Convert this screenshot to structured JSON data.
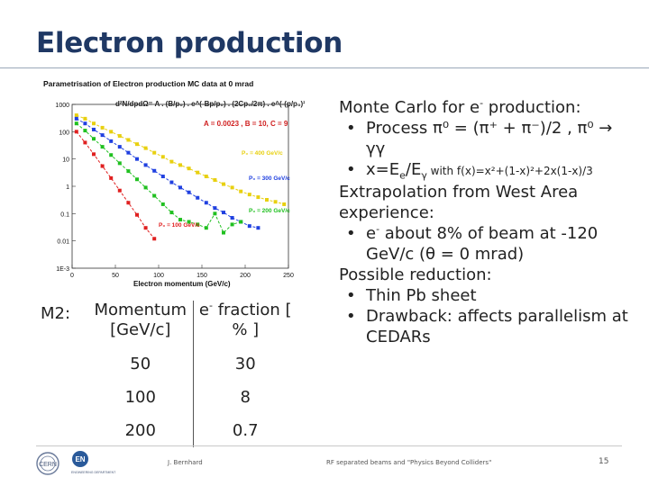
{
  "title": "Electron production",
  "chart_data": {
    "type": "scatter",
    "title": "Parametrisation of Electron production MC data at 0 mrad",
    "formula_main": "d²N/dpdΩ= A . (B/p₀) . e^(-Bp/p₀) . (2Cp₀/2π) . e^(-(p/p₀)²)",
    "formula_params": "A = 0.0023 , B = 10, C = 9",
    "xlabel": "Electron momentum (GeV/c)",
    "ylabel": "",
    "xlim": [
      0,
      250
    ],
    "ylim_log10": [
      -3,
      3
    ],
    "x_ticks": [
      "0",
      "50",
      "100",
      "150",
      "200",
      "250"
    ],
    "y_ticks": [
      "1000",
      "100",
      "10",
      "1",
      "0.1",
      "0.01",
      "1E-3"
    ],
    "series": [
      {
        "name": "P₀ = 400 GeV/c",
        "color": "#e8d010",
        "x": [
          5,
          15,
          25,
          35,
          45,
          55,
          65,
          75,
          85,
          95,
          105,
          115,
          125,
          135,
          145,
          155,
          165,
          175,
          185,
          195,
          205,
          215,
          225,
          235,
          245
        ],
        "y": [
          400,
          300,
          200,
          140,
          100,
          70,
          50,
          35,
          25,
          17,
          12,
          8,
          6,
          4.5,
          3.2,
          2.3,
          1.7,
          1.2,
          0.9,
          0.65,
          0.5,
          0.4,
          0.32,
          0.27,
          0.22
        ]
      },
      {
        "name": "P₀ = 300 GeV/c",
        "color": "#2040e0",
        "x": [
          5,
          15,
          25,
          35,
          45,
          55,
          65,
          75,
          85,
          95,
          105,
          115,
          125,
          135,
          145,
          155,
          165,
          175,
          185,
          195,
          205,
          215
        ],
        "y": [
          300,
          200,
          120,
          75,
          45,
          28,
          17,
          10,
          6,
          3.7,
          2.3,
          1.4,
          0.9,
          0.6,
          0.38,
          0.25,
          0.16,
          0.11,
          0.07,
          0.05,
          0.035,
          0.03
        ]
      },
      {
        "name": "P₀ = 200 GeV/c",
        "color": "#20c020",
        "x": [
          5,
          15,
          25,
          35,
          45,
          55,
          65,
          75,
          85,
          95,
          105,
          115,
          125,
          135,
          145,
          155,
          165,
          175,
          185,
          195
        ],
        "y": [
          200,
          110,
          55,
          28,
          14,
          7,
          3.6,
          1.8,
          0.9,
          0.45,
          0.22,
          0.11,
          0.06,
          0.05,
          0.04,
          0.03,
          0.1,
          0.02,
          0.04,
          0.05
        ]
      },
      {
        "name": "P₀ = 100 GeV/c",
        "color": "#e02020",
        "x": [
          5,
          15,
          25,
          35,
          45,
          55,
          65,
          75,
          85,
          95
        ],
        "y": [
          100,
          40,
          15,
          5.5,
          2,
          0.7,
          0.25,
          0.09,
          0.03,
          0.012
        ]
      }
    ]
  },
  "right_text": {
    "mc_line_pre": "Monte Carlo for e",
    "mc_line_sup": "-",
    "mc_line_post": " production:",
    "bullet1": "Process π⁰ = (π⁺ + π⁻)/2 , π⁰ → γγ",
    "bullet2_pre": "x=E",
    "bullet2_sub1": "e",
    "bullet2_mid": "/E",
    "bullet2_sub2": "γ",
    "bullet2_small": " with f(x)=x²+(1-x)²+2x(1-x)/3",
    "extrap": "Extrapolation from West Area experience:",
    "bullet3_pre": "e",
    "bullet3_sup": "-",
    "bullet3_post": " about 8% of beam at -120 GeV/c (θ = 0 mrad)",
    "possible": "Possible reduction:",
    "bullet4": "Thin Pb sheet",
    "bullet5": "Drawback: affects parallelism at CEDARs",
    "bullet_char": "•"
  },
  "table": {
    "label": "M2:",
    "header_col1": "Momentum [GeV/c]",
    "header_col2_pre": "e",
    "header_col2_sup": "-",
    "header_col2_post": " fraction [ % ]",
    "rows": [
      {
        "momentum": "50",
        "fraction": "30"
      },
      {
        "momentum": "100",
        "fraction": "8"
      },
      {
        "momentum": "200",
        "fraction": "0.7"
      }
    ]
  },
  "footer": {
    "author": "J. Bernhard",
    "event": "RF separated beams and \"Physics Beyond Colliders\"",
    "page": "15",
    "logo_cern": "CERN",
    "logo_en": "EN",
    "logo_en_sub": "ENGINEERING DEPARTMENT"
  }
}
